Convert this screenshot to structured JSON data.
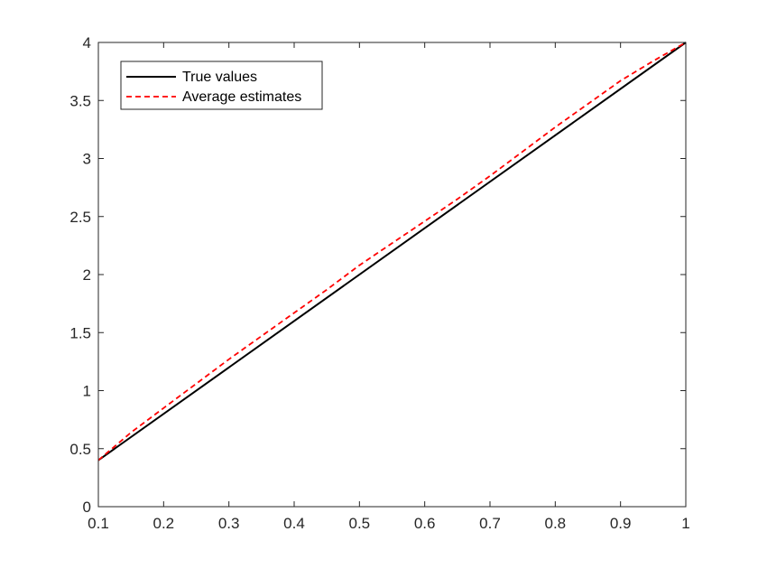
{
  "chart_data": {
    "type": "line",
    "title": "",
    "xlabel": "",
    "ylabel": "",
    "xlim": [
      0.1,
      1
    ],
    "ylim": [
      0,
      4
    ],
    "xticks": [
      "0.1",
      "0.2",
      "0.3",
      "0.4",
      "0.5",
      "0.6",
      "0.7",
      "0.8",
      "0.9",
      "1"
    ],
    "yticks": [
      "0",
      "0.5",
      "1",
      "1.5",
      "2",
      "2.5",
      "3",
      "3.5",
      "4"
    ],
    "grid": false,
    "legend_position": "top-left",
    "series": [
      {
        "name": "True values",
        "color": "#000000",
        "style": "solid",
        "x": [
          0.1,
          1.0
        ],
        "y": [
          0.4,
          4.0
        ]
      },
      {
        "name": "Average estimates",
        "color": "#ff0000",
        "style": "dashed",
        "x": [
          0.1,
          0.15,
          0.2,
          0.25,
          0.3,
          0.35,
          0.4,
          0.45,
          0.5,
          0.55,
          0.6,
          0.65,
          0.7,
          0.75,
          0.8,
          0.85,
          0.9,
          0.95,
          1.0
        ],
        "y": [
          0.4,
          0.64,
          0.85,
          1.06,
          1.27,
          1.47,
          1.67,
          1.87,
          2.08,
          2.27,
          2.46,
          2.65,
          2.85,
          3.06,
          3.27,
          3.47,
          3.67,
          3.84,
          4.0
        ]
      }
    ]
  }
}
